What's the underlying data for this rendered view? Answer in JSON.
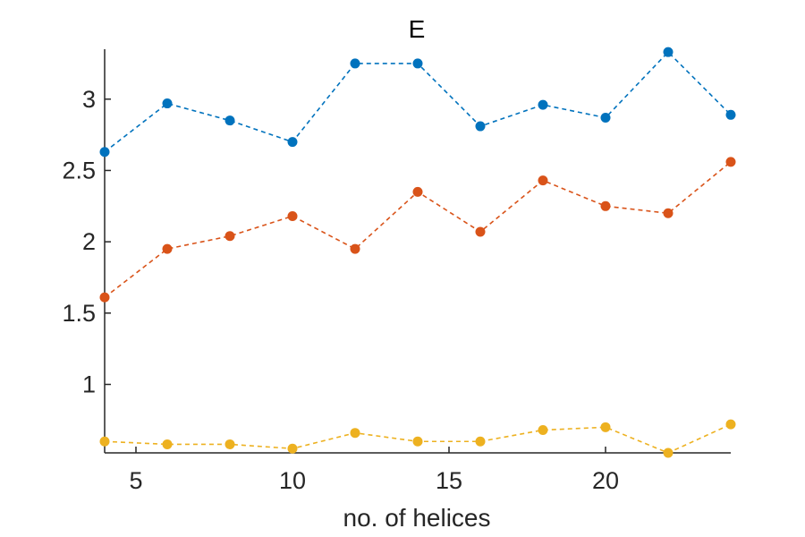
{
  "chart_data": {
    "type": "line",
    "title": "E",
    "xlabel": "no. of helices",
    "ylabel": "",
    "xlim": [
      4,
      24
    ],
    "ylim": [
      0.52,
      3.35
    ],
    "xticks": [
      5,
      10,
      15,
      20
    ],
    "yticks": [
      1,
      1.5,
      2,
      2.5,
      3
    ],
    "xtick_labels": [
      "5",
      "10",
      "15",
      "20"
    ],
    "ytick_labels": [
      "1",
      "1.5",
      "2",
      "2.5",
      "3"
    ],
    "x": [
      4,
      6,
      8,
      10,
      12,
      14,
      16,
      18,
      20,
      22,
      24
    ],
    "series": [
      {
        "color": "#0072BD",
        "line_style": "dashed",
        "marker": "filled-circle",
        "values": [
          2.63,
          2.97,
          2.85,
          2.7,
          3.25,
          3.25,
          2.81,
          2.96,
          2.87,
          3.33,
          2.89
        ]
      },
      {
        "color": "#D95319",
        "line_style": "dashed",
        "marker": "filled-circle",
        "values": [
          1.61,
          1.95,
          2.04,
          2.18,
          1.95,
          2.35,
          2.07,
          2.43,
          2.25,
          2.2,
          2.56
        ]
      },
      {
        "color": "#EDB120",
        "line_style": "dashed",
        "marker": "filled-circle",
        "values": [
          0.6,
          0.58,
          0.58,
          0.55,
          0.66,
          0.6,
          0.6,
          0.68,
          0.7,
          0.52,
          0.72
        ]
      }
    ],
    "grid": false,
    "box": false
  }
}
